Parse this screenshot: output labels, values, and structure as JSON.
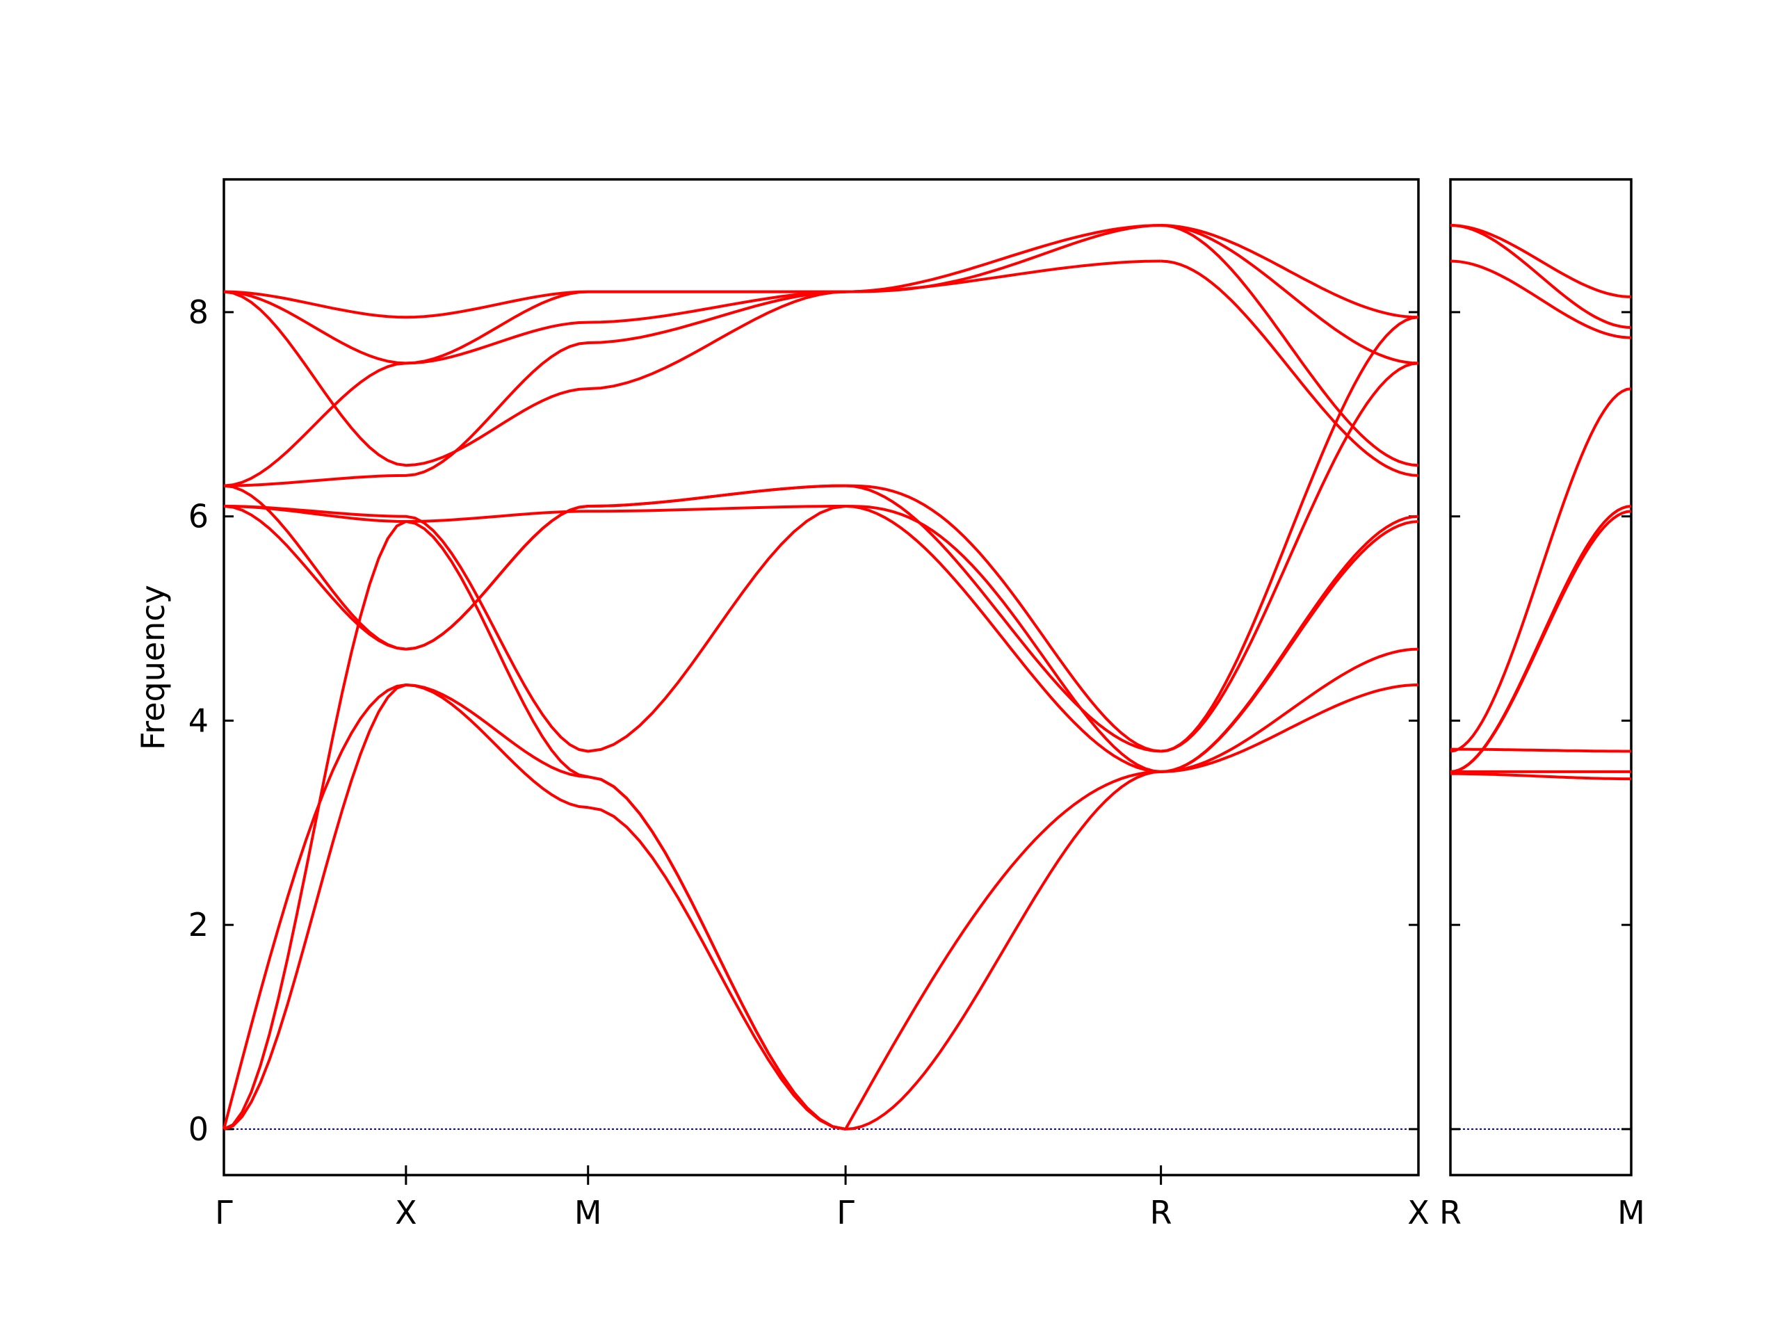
{
  "chart_data": {
    "type": "line",
    "ylabel": "Frequency",
    "ylim": [
      -0.45,
      9.3
    ],
    "yticks": [
      0,
      2,
      4,
      6,
      8
    ],
    "grid": false,
    "line_color": "#ff0000",
    "zero_line_color": "#00008b",
    "panels": [
      {
        "segments": [
          {
            "start": "Γ",
            "end": "X",
            "length": 0.5
          },
          {
            "start": "X",
            "end": "M",
            "length": 0.5
          },
          {
            "start": "M",
            "end": "Γ",
            "length": 0.7071
          },
          {
            "start": "Γ",
            "end": "R",
            "length": 0.866
          },
          {
            "start": "R",
            "end": "X",
            "length": 0.7071
          }
        ],
        "tick_labels": [
          "Γ",
          "X",
          "M",
          "Γ",
          "R",
          "X"
        ],
        "bands": [
          {
            "values": [
              0,
              4.35,
              3.45,
              0
            ]
          },
          {
            "values": [
              0,
              4.35,
              3.15,
              0
            ],
            "fn": "acoustic-dip"
          },
          {
            "values": [
              0,
              5.95,
              3.45,
              0
            ]
          },
          {
            "values": [
              6.1,
              5.95,
              6.05,
              6.1
            ]
          },
          {
            "values": [
              6.1,
              6.0,
              3.7,
              6.1
            ]
          },
          {
            "values": [
              6.1,
              4.7,
              6.1,
              6.3
            ]
          },
          {
            "values": [
              6.3,
              4.7,
              6.1,
              6.3
            ]
          },
          {
            "values": [
              6.3,
              6.4,
              7.7,
              8.2
            ]
          },
          {
            "values": [
              6.3,
              7.5,
              7.9,
              8.2
            ]
          },
          {
            "values": [
              8.2,
              7.5,
              8.2,
              8.2
            ]
          },
          {
            "values": [
              8.2,
              6.5,
              7.25,
              8.2
            ]
          },
          {
            "values": [
              8.2,
              7.95,
              8.2,
              8.2
            ]
          }
        ],
        "bands_gr": [
          {
            "values": [
              0,
              3.5
            ]
          },
          {
            "values": [
              0,
              3.5
            ],
            "fn": "steep"
          },
          {
            "values": [
              6.1,
              3.5
            ]
          },
          {
            "values": [
              6.1,
              3.5
            ],
            "fn": "late"
          },
          {
            "values": [
              6.3,
              3.7
            ]
          },
          {
            "values": [
              6.3,
              3.7
            ],
            "fn": "late"
          },
          {
            "values": [
              8.2,
              8.5
            ]
          },
          {
            "values": [
              8.2,
              8.85
            ]
          },
          {
            "values": [
              8.2,
              8.85
            ],
            "fn": "late"
          }
        ],
        "bands_rx": [
          {
            "values": [
              3.5,
              4.35
            ]
          },
          {
            "values": [
              3.5,
              4.7
            ]
          },
          {
            "values": [
              3.5,
              6.0
            ]
          },
          {
            "values": [
              3.5,
              5.95
            ]
          },
          {
            "values": [
              3.7,
              7.5
            ]
          },
          {
            "values": [
              3.7,
              7.95
            ]
          },
          {
            "values": [
              8.5,
              6.4
            ]
          },
          {
            "values": [
              8.85,
              6.5
            ]
          },
          {
            "values": [
              8.85,
              7.5
            ]
          },
          {
            "values": [
              8.85,
              7.95
            ]
          }
        ]
      },
      {
        "segments": [
          {
            "start": "R",
            "end": "M",
            "length": 0.5
          }
        ],
        "tick_labels": [
          "R",
          "M"
        ],
        "bands_rm": [
          {
            "values": [
              3.48,
              3.43
            ]
          },
          {
            "values": [
              3.5,
              3.5
            ]
          },
          {
            "values": [
              3.72,
              3.7
            ]
          },
          {
            "values": [
              3.5,
              6.05
            ]
          },
          {
            "values": [
              3.5,
              6.1
            ]
          },
          {
            "values": [
              3.7,
              7.25
            ]
          },
          {
            "values": [
              8.5,
              7.75
            ]
          },
          {
            "values": [
              8.85,
              7.85
            ]
          },
          {
            "values": [
              8.85,
              8.15
            ]
          }
        ]
      }
    ]
  }
}
